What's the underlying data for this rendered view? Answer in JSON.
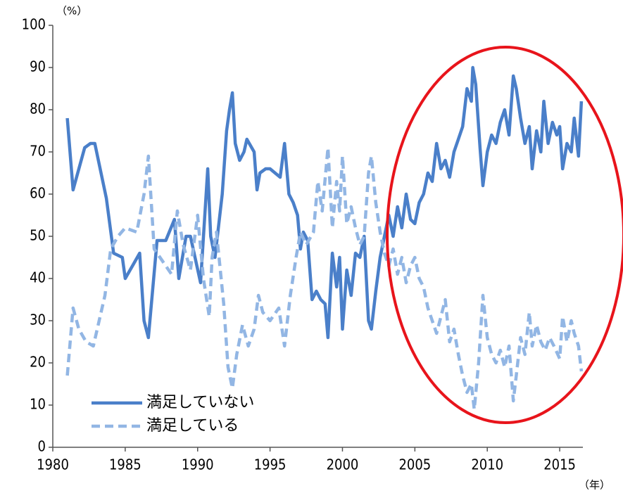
{
  "chart_data": {
    "type": "line",
    "y_unit": "（%）",
    "x_unit": "（年）",
    "xlim": [
      1980,
      2016.6
    ],
    "xticks": [
      1980,
      1985,
      1990,
      1995,
      2000,
      2005,
      2010,
      2015
    ],
    "ylim": [
      0,
      100
    ],
    "yticks": [
      0,
      10,
      20,
      30,
      40,
      50,
      60,
      70,
      80,
      90,
      100
    ],
    "grid": false,
    "legend": "lower left",
    "series": [
      {
        "name": "満足していない",
        "color": "#4a7fc9",
        "linestyle": "solid",
        "x": [
          1981.0,
          1981.4,
          1982.2,
          1982.6,
          1982.9,
          1983.7,
          1984.2,
          1984.8,
          1985.0,
          1985.5,
          1986.0,
          1986.3,
          1986.6,
          1987.2,
          1987.8,
          1988.4,
          1988.7,
          1989.2,
          1989.5,
          1990.2,
          1990.7,
          1990.9,
          1991.2,
          1991.7,
          1992.0,
          1992.2,
          1992.4,
          1992.6,
          1992.9,
          1993.2,
          1993.4,
          1993.9,
          1994.1,
          1994.3,
          1994.7,
          1995.0,
          1995.7,
          1996.0,
          1996.3,
          1996.6,
          1996.9,
          1997.1,
          1997.3,
          1997.6,
          1997.9,
          1998.2,
          1998.5,
          1998.8,
          1999.0,
          1999.3,
          1999.6,
          1999.8,
          2000.0,
          2000.3,
          2000.6,
          2000.9,
          2001.2,
          2001.5,
          2001.8,
          2002.0,
          2002.3,
          2002.6,
          2002.9,
          2003.2,
          2003.5,
          2003.8,
          2004.1,
          2004.4,
          2004.7,
          2005.0,
          2005.3,
          2005.6,
          2005.9,
          2006.2,
          2006.5,
          2006.8,
          2007.1,
          2007.4,
          2007.7,
          2008.0,
          2008.3,
          2008.6,
          2008.9,
          2009.0,
          2009.2,
          2009.5,
          2009.7,
          2010.0,
          2010.3,
          2010.6,
          2010.9,
          2011.2,
          2011.5,
          2011.8,
          2012.0,
          2012.3,
          2012.6,
          2012.9,
          2013.1,
          2013.4,
          2013.7,
          2013.9,
          2014.2,
          2014.5,
          2014.8,
          2015.0,
          2015.2,
          2015.5,
          2015.8,
          2016.0,
          2016.3,
          2016.5
        ],
        "values": [
          78,
          61,
          71,
          72,
          72,
          59,
          46,
          45,
          40,
          43,
          46,
          30,
          26,
          49,
          49,
          54,
          40,
          50,
          50,
          39,
          66,
          50,
          45,
          60,
          75,
          80,
          84,
          72,
          68,
          70,
          73,
          70,
          61,
          65,
          66,
          66,
          64,
          72,
          60,
          58,
          55,
          47,
          51,
          49,
          35,
          37,
          35,
          34,
          26,
          46,
          38,
          45,
          28,
          42,
          36,
          46,
          45,
          50,
          30,
          28,
          37,
          45,
          50,
          55,
          50,
          57,
          52,
          60,
          54,
          53,
          58,
          60,
          65,
          63,
          72,
          66,
          68,
          64,
          70,
          73,
          76,
          85,
          82,
          90,
          86,
          71,
          62,
          70,
          74,
          72,
          77,
          80,
          74,
          88,
          85,
          78,
          72,
          76,
          66,
          75,
          70,
          82,
          72,
          77,
          74,
          76,
          66,
          72,
          70,
          78,
          69,
          82
        ]
      },
      {
        "name": "満足している",
        "color": "#92b6e4",
        "linestyle": "dashed",
        "x": [
          1981.0,
          1981.4,
          1981.8,
          1982.3,
          1982.8,
          1983.6,
          1984.0,
          1984.5,
          1985.0,
          1985.8,
          1986.3,
          1986.6,
          1987.0,
          1987.8,
          1988.2,
          1988.6,
          1989.0,
          1989.5,
          1990.0,
          1990.4,
          1990.8,
          1991.0,
          1991.3,
          1991.8,
          1992.1,
          1992.4,
          1992.7,
          1993.1,
          1993.5,
          1993.9,
          1994.2,
          1994.5,
          1995.0,
          1995.6,
          1996.0,
          1996.4,
          1996.8,
          1997.1,
          1997.5,
          1998.0,
          1998.3,
          1998.6,
          1999.0,
          1999.3,
          1999.6,
          1999.8,
          2000.0,
          2000.3,
          2000.6,
          2000.9,
          2001.2,
          2001.5,
          2001.8,
          2002.0,
          2002.3,
          2002.6,
          2002.9,
          2003.2,
          2003.5,
          2003.8,
          2004.1,
          2004.4,
          2004.7,
          2005.0,
          2005.3,
          2005.6,
          2005.9,
          2006.2,
          2006.5,
          2006.8,
          2007.1,
          2007.4,
          2007.7,
          2008.0,
          2008.3,
          2008.6,
          2008.9,
          2009.1,
          2009.4,
          2009.7,
          2010.0,
          2010.3,
          2010.6,
          2010.9,
          2011.2,
          2011.5,
          2011.8,
          2012.0,
          2012.3,
          2012.6,
          2012.9,
          2013.1,
          2013.4,
          2013.7,
          2014.0,
          2014.3,
          2014.6,
          2015.0,
          2015.2,
          2015.5,
          2015.8,
          2016.0,
          2016.3,
          2016.5
        ],
        "values": [
          17,
          33,
          28,
          25,
          24,
          36,
          47,
          50,
          52,
          51,
          60,
          69,
          47,
          43,
          41,
          56,
          48,
          42,
          55,
          40,
          31,
          45,
          51,
          34,
          19,
          14,
          22,
          29,
          24,
          28,
          36,
          32,
          30,
          33,
          24,
          36,
          45,
          51,
          48,
          51,
          63,
          56,
          71,
          52,
          63,
          56,
          69,
          53,
          57,
          52,
          48,
          50,
          65,
          69,
          58,
          51,
          46,
          43,
          47,
          41,
          45,
          39,
          43,
          45,
          40,
          38,
          33,
          30,
          27,
          31,
          35,
          25,
          28,
          22,
          17,
          13,
          15,
          9,
          20,
          36,
          26,
          22,
          20,
          23,
          19,
          24,
          11,
          17,
          26,
          22,
          32,
          24,
          29,
          25,
          23,
          26,
          24,
          21,
          31,
          25,
          30,
          27,
          24,
          18
        ]
      }
    ]
  }
}
